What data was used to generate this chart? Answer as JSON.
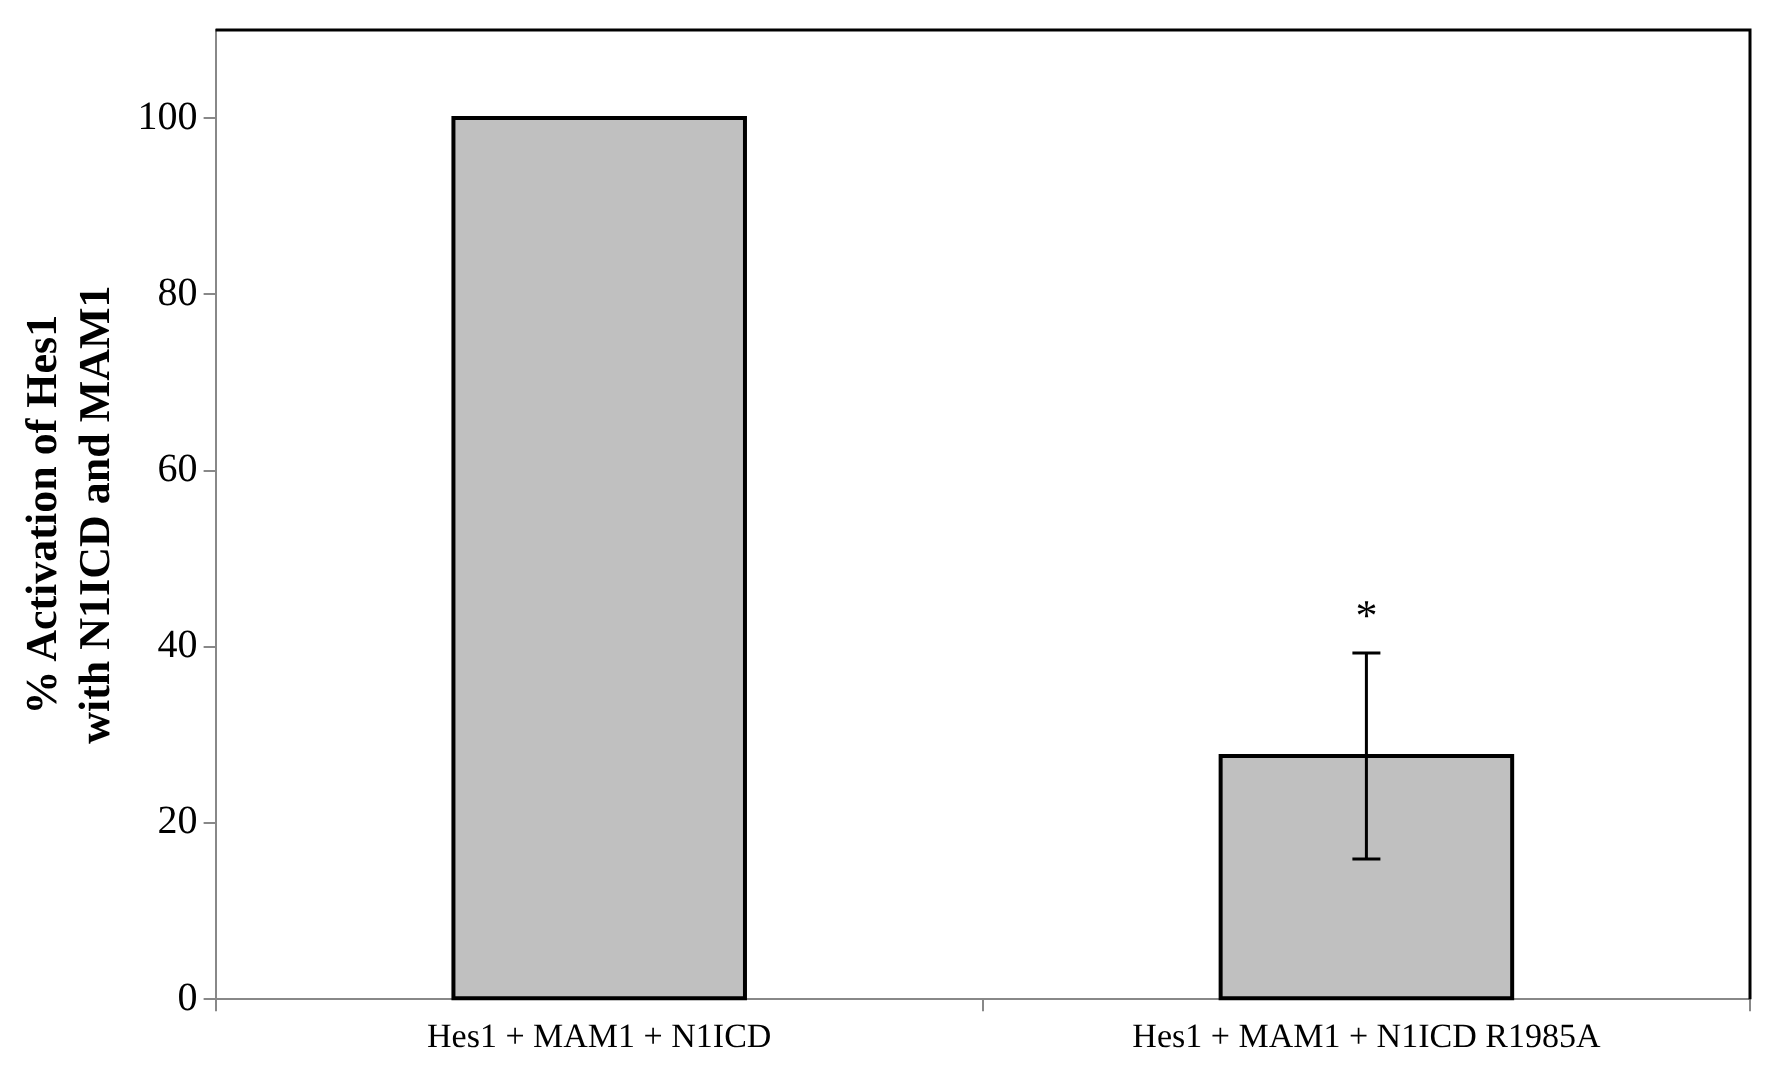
{
  "chart_data": {
    "type": "bar",
    "ylabel": "% Activation of Hes1 with N1ICD and MAM1",
    "categories": [
      "Hes1 + MAM1 + N1ICD",
      "Hes1 + MAM1 + N1ICD R1985A"
    ],
    "values": [
      100,
      27.6
    ],
    "errors": [
      null,
      11.7
    ],
    "color": "#c0c0c0",
    "ylim": [
      0,
      110
    ],
    "yticks": [
      0,
      20,
      40,
      60,
      80,
      100
    ],
    "grid": false,
    "legend": false,
    "annotations": [
      "*"
    ]
  }
}
